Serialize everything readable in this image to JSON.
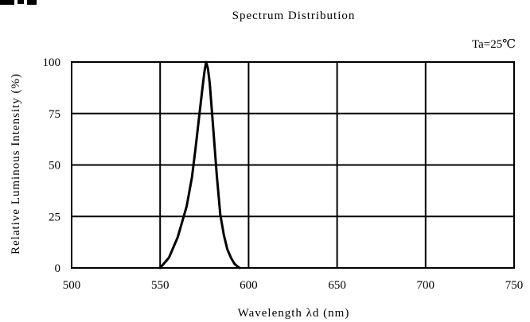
{
  "chart_data": {
    "type": "line",
    "title": "Spectrum   Distribution",
    "annotation": "Ta=25℃",
    "xlabel": "Wavelength    λd (nm)",
    "ylabel": "Relative   Luminous   Intensity   (%)",
    "xlim": [
      500,
      750
    ],
    "ylim": [
      0,
      100
    ],
    "x_ticks": [
      500,
      550,
      600,
      650,
      700,
      750
    ],
    "y_ticks": [
      0,
      25,
      50,
      75,
      100
    ],
    "grid": true,
    "series": [
      {
        "x": [
          550,
          555,
          560,
          565,
          568,
          570,
          572,
          574,
          575,
          576,
          577,
          578,
          580,
          582,
          584,
          586,
          588,
          590,
          592,
          594,
          595
        ],
        "y": [
          0,
          5,
          15,
          30,
          44,
          58,
          73,
          88,
          95,
          100,
          97,
          90,
          68,
          45,
          26,
          16,
          9,
          5,
          2,
          0.5,
          0
        ]
      }
    ]
  }
}
